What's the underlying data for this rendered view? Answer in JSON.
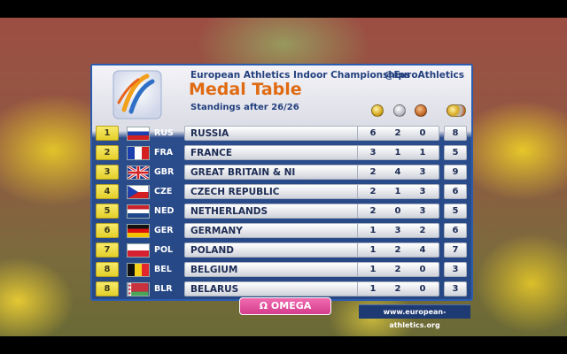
{
  "header": {
    "championship": "European Athletics Indoor Championships",
    "handle": "@EuroAthletics",
    "title": "Medal Table",
    "subtitle": "Standings after 26/26",
    "medal_colors": {
      "gold": "#d6a821",
      "silver": "#b9bcc4",
      "bronze": "#c46a2a",
      "total": "#d6a821"
    }
  },
  "rows": [
    {
      "rank": "1",
      "code": "RUS",
      "flag": "russia-flag-icon",
      "name": "RUSSIA",
      "gold": "6",
      "silver": "2",
      "bronze": "0",
      "total": "8"
    },
    {
      "rank": "2",
      "code": "FRA",
      "flag": "france-flag-icon",
      "name": "FRANCE",
      "gold": "3",
      "silver": "1",
      "bronze": "1",
      "total": "5"
    },
    {
      "rank": "3",
      "code": "GBR",
      "flag": "great-britain-flag-icon",
      "name": "GREAT BRITAIN & NI",
      "gold": "2",
      "silver": "4",
      "bronze": "3",
      "total": "9"
    },
    {
      "rank": "4",
      "code": "CZE",
      "flag": "czech-flag-icon",
      "name": "CZECH REPUBLIC",
      "gold": "2",
      "silver": "1",
      "bronze": "3",
      "total": "6"
    },
    {
      "rank": "5",
      "code": "NED",
      "flag": "netherlands-flag-icon",
      "name": "NETHERLANDS",
      "gold": "2",
      "silver": "0",
      "bronze": "3",
      "total": "5"
    },
    {
      "rank": "6",
      "code": "GER",
      "flag": "germany-flag-icon",
      "name": "GERMANY",
      "gold": "1",
      "silver": "3",
      "bronze": "2",
      "total": "6"
    },
    {
      "rank": "7",
      "code": "POL",
      "flag": "poland-flag-icon",
      "name": "POLAND",
      "gold": "1",
      "silver": "2",
      "bronze": "4",
      "total": "7"
    },
    {
      "rank": "8",
      "code": "BEL",
      "flag": "belgium-flag-icon",
      "name": "BELGIUM",
      "gold": "1",
      "silver": "2",
      "bronze": "0",
      "total": "3"
    },
    {
      "rank": "8",
      "code": "BLR",
      "flag": "belarus-flag-icon",
      "name": "BELARUS",
      "gold": "1",
      "silver": "2",
      "bronze": "0",
      "total": "3"
    }
  ],
  "footer": {
    "website": "www.european-athletics.org",
    "sponsor": "Ω OMEGA",
    "sponsor_color": "#e0509c"
  }
}
